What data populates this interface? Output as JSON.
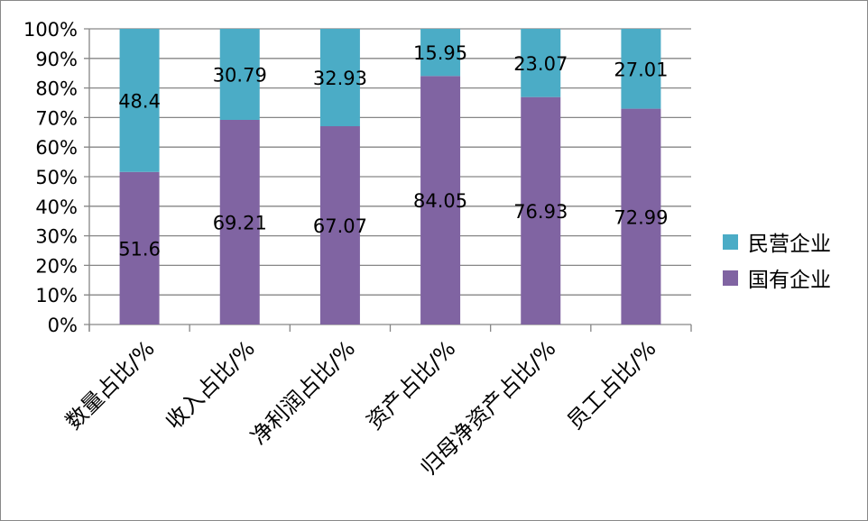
{
  "chart_data": {
    "type": "bar",
    "stacked": "percent",
    "categories": [
      "数量占比/%",
      "收入占比/%",
      "净利润占比/%",
      "资产占比/%",
      "归母净资产占比/%",
      "员工占比/%"
    ],
    "series": [
      {
        "name": "国有企业",
        "values": [
          51.6,
          69.21,
          67.07,
          84.05,
          76.93,
          72.99
        ],
        "labels": [
          "51.6",
          "69.21",
          "67.07",
          "84.05",
          "76.93",
          "72.99"
        ],
        "color": "#8064A2"
      },
      {
        "name": "民营企业",
        "values": [
          48.4,
          30.79,
          32.93,
          15.95,
          23.07,
          27.01
        ],
        "labels": [
          "48.4",
          "30.79",
          "32.93",
          "15.95",
          "23.07",
          "27.01"
        ],
        "color": "#4BACC6"
      }
    ],
    "yticks": [
      "0%",
      "10%",
      "20%",
      "30%",
      "40%",
      "50%",
      "60%",
      "70%",
      "80%",
      "90%",
      "100%"
    ],
    "ylim": [
      0,
      100
    ],
    "grid": true,
    "legend": "right",
    "legend_order": [
      "民营企业",
      "国有企业"
    ]
  }
}
